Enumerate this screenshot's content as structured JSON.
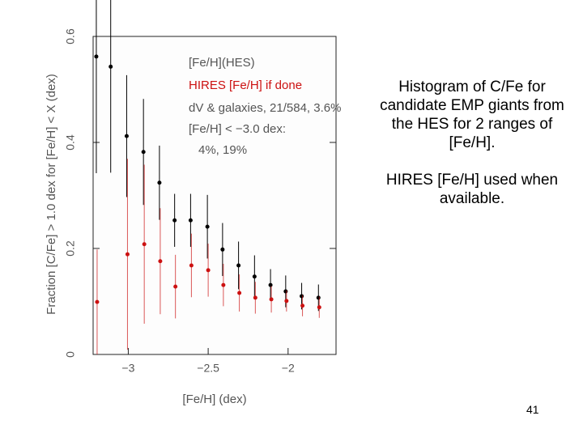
{
  "chart_data": {
    "type": "scatter",
    "ylabel": "Fraction [C/Fe] > 1.0 dex for [Fe/H] < X (dex)",
    "xlabel": "[Fe/H] (dex)",
    "xlim": [
      -3.22,
      -1.7
    ],
    "ylim": [
      0,
      0.6
    ],
    "xticks": [
      {
        "value": -3,
        "label": "−3"
      },
      {
        "value": -2.5,
        "label": "−2.5"
      },
      {
        "value": -2,
        "label": "−2"
      }
    ],
    "yticks": [
      0,
      0.2,
      0.4,
      0.6
    ],
    "annotations": [
      "dV & galaxies, 21/584, 3.6%",
      "[Fe/H] < −3.0 dex:",
      "4%, 19%"
    ],
    "series": [
      {
        "name": "[Fe/H](HES)",
        "color": "#000000",
        "x": [
          -3.2,
          -3.11,
          -3.01,
          -2.905,
          -2.805,
          -2.71,
          -2.61,
          -2.505,
          -2.41,
          -2.31,
          -2.21,
          -2.11,
          -2.015,
          -1.915,
          -1.81
        ],
        "values": [
          0.562,
          0.543,
          0.412,
          0.382,
          0.324,
          0.253,
          0.253,
          0.241,
          0.198,
          0.168,
          0.147,
          0.131,
          0.119,
          0.11,
          0.107
        ],
        "errors": [
          0.22,
          0.2,
          0.115,
          0.1,
          0.07,
          0.05,
          0.05,
          0.06,
          0.05,
          0.045,
          0.04,
          0.03,
          0.03,
          0.025,
          0.025
        ]
      },
      {
        "name": "HIRES [Fe/H] if done",
        "color": "#cc1111",
        "x": [
          -3.2,
          -3.01,
          -2.905,
          -2.805,
          -2.71,
          -2.61,
          -2.505,
          -2.41,
          -2.31,
          -2.21,
          -2.11,
          -2.015,
          -1.915,
          -1.81
        ],
        "values": [
          0.099,
          0.189,
          0.208,
          0.176,
          0.128,
          0.168,
          0.159,
          0.131,
          0.116,
          0.107,
          0.104,
          0.101,
          0.092,
          0.089
        ],
        "errors": [
          0.099,
          0.18,
          0.15,
          0.1,
          0.06,
          0.06,
          0.05,
          0.04,
          0.035,
          0.03,
          0.025,
          0.02,
          0.02,
          0.02
        ]
      }
    ]
  },
  "slide": {
    "paragraphs": [
      "Histogram of C/Fe for candidate EMP giants from the HES for 2 ranges of [Fe/H].",
      "HIRES [Fe/H] used when available."
    ],
    "page_number": 41
  }
}
